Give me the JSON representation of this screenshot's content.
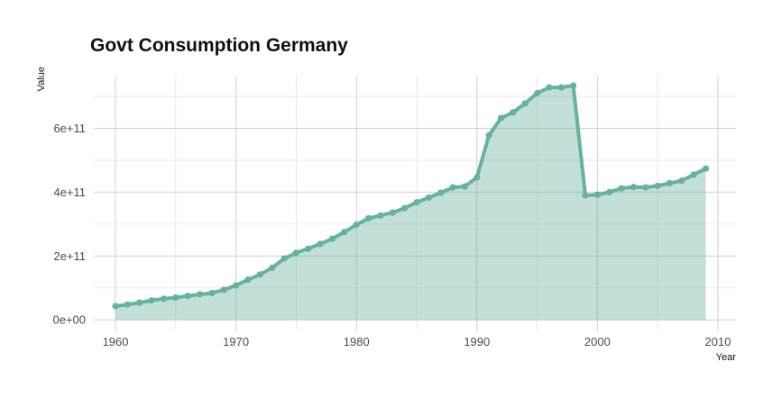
{
  "chart_data": {
    "type": "area",
    "title": "Govt Consumption Germany",
    "xlabel": "Year",
    "ylabel": "Value",
    "xlim": [
      1958.2,
      2011.5
    ],
    "ylim": [
      -36000000000.0,
      765000000000.0
    ],
    "x_ticks": [
      1960,
      1970,
      1980,
      1990,
      2000,
      2010
    ],
    "y_ticks": [
      0,
      200000000000,
      400000000000,
      600000000000
    ],
    "y_tick_labels": [
      "0e+00",
      "2e+11",
      "4e+11",
      "6e+11"
    ],
    "grid": true,
    "legend": "none",
    "colors": {
      "line": "#66b2a0",
      "area": "#66b2a0",
      "grid": "#d0d0d0"
    },
    "series": [
      {
        "x": [
          1960,
          1961,
          1962,
          1963,
          1964,
          1965,
          1966,
          1967,
          1968,
          1969,
          1970,
          1971,
          1972,
          1973,
          1974,
          1975,
          1976,
          1977,
          1978,
          1979,
          1980,
          1981,
          1982,
          1983,
          1984,
          1985,
          1986,
          1987,
          1988,
          1989,
          1990,
          1991,
          1992,
          1993,
          1994,
          1995,
          1996,
          1997,
          1998,
          1999,
          2000,
          2001,
          2002,
          2003,
          2004,
          2005,
          2006,
          2007,
          2008,
          2009
        ],
        "values": [
          43000000000,
          48000000000,
          54000000000,
          61000000000,
          66000000000,
          70000000000,
          75000000000,
          80000000000,
          84000000000,
          94000000000,
          108000000000,
          126000000000,
          142000000000,
          163000000000,
          192000000000,
          210000000000,
          223000000000,
          238000000000,
          254000000000,
          275000000000,
          298000000000,
          318000000000,
          327000000000,
          336000000000,
          350000000000,
          368000000000,
          383000000000,
          398000000000,
          415000000000,
          418000000000,
          446000000000,
          578000000000,
          632000000000,
          650000000000,
          678000000000,
          710000000000,
          728000000000,
          728000000000,
          734000000000,
          390000000000,
          392000000000,
          400000000000,
          412000000000,
          416000000000,
          415000000000,
          420000000000,
          428000000000,
          436000000000,
          455000000000,
          474000000000
        ]
      }
    ]
  }
}
